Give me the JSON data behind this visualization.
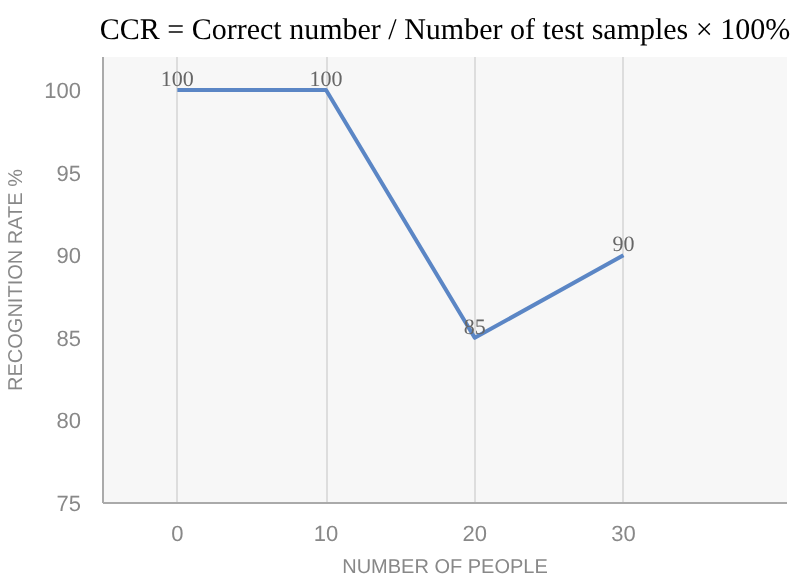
{
  "chart_data": {
    "type": "line",
    "title": "CCR = Correct number / Number of test samples × 100%",
    "xlabel": "NUMBER OF PEOPLE",
    "ylabel": "RECOGNITION RATE %",
    "x": [
      0,
      10,
      20,
      30
    ],
    "series": [
      {
        "color": "#5b86c5",
        "values": [
          100,
          100,
          85,
          90
        ]
      }
    ],
    "xlim": [
      -5,
      41
    ],
    "xticks": [
      0,
      10,
      20,
      30
    ],
    "ylim": [
      75,
      102
    ],
    "yticks": [
      75,
      80,
      85,
      90,
      95,
      100
    ],
    "grid": "x",
    "data_labels": true,
    "marker": "none",
    "line_style": "solid"
  }
}
